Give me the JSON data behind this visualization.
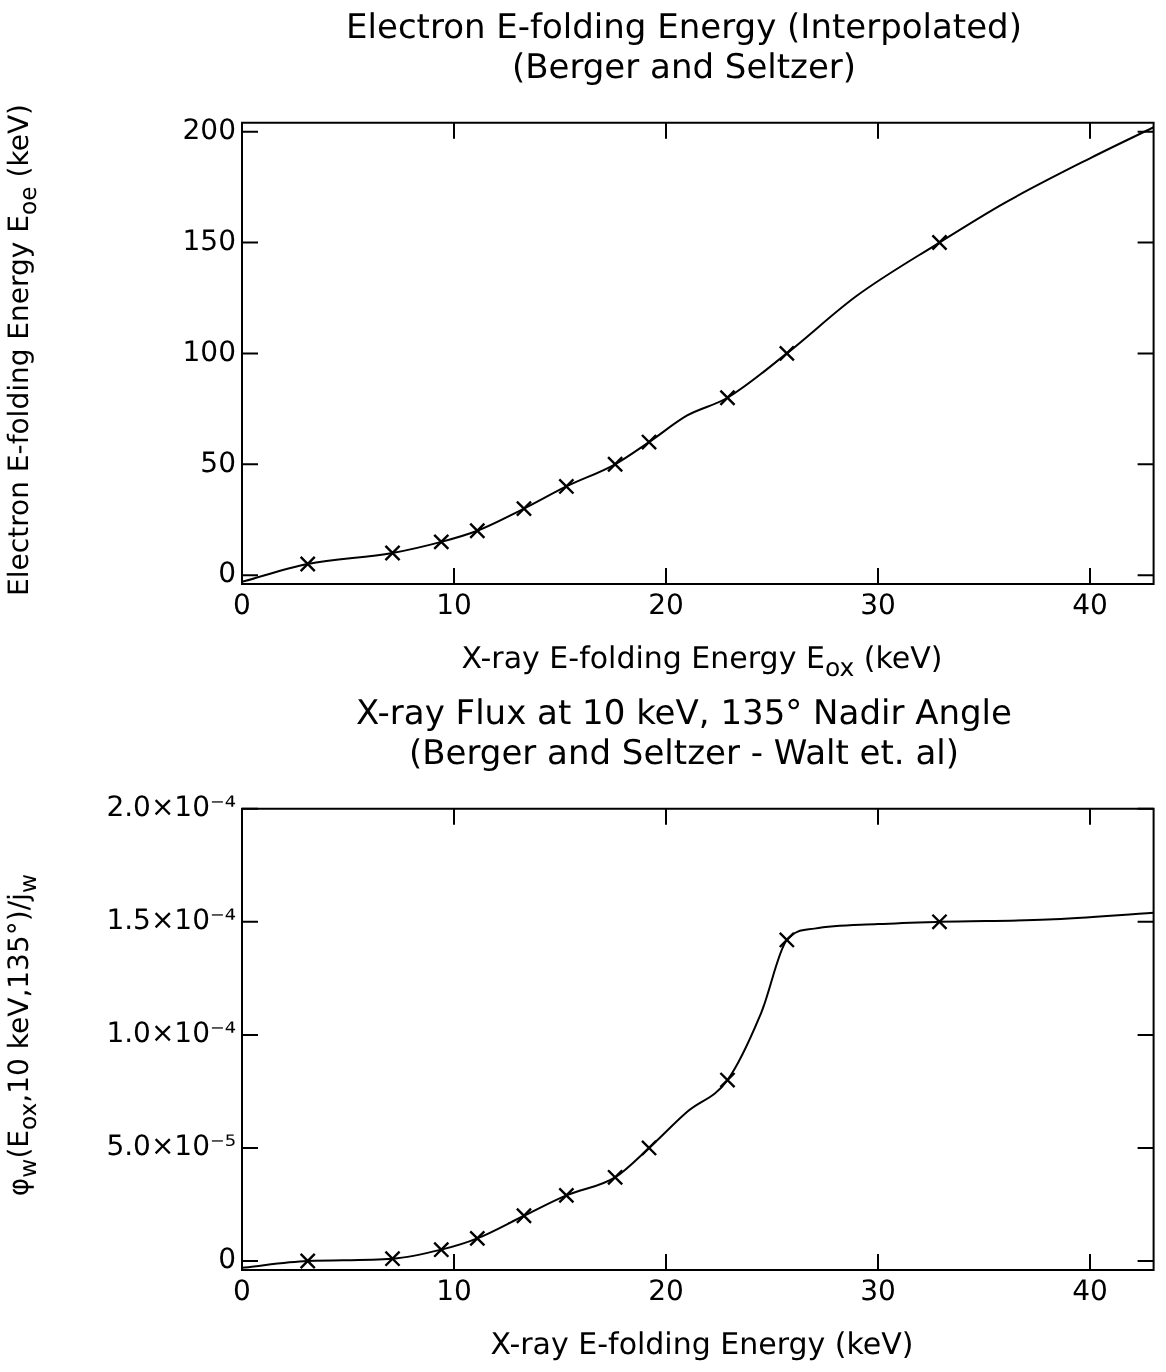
{
  "chart_data": [
    {
      "type": "line",
      "title": "Electron  E-folding Energy (Interpolated)",
      "subtitle": "(Berger and Seltzer)",
      "xlabel": "X-ray E-folding Energy E$_{ox}$ (keV)",
      "ylabel": "Electron E-folding Energy E$_{oe}$ (keV)",
      "xlim": [
        0,
        43
      ],
      "ylim": [
        -4,
        204
      ],
      "xticks": [
        0,
        10,
        20,
        30,
        40
      ],
      "yticks": [
        0,
        50,
        100,
        150,
        200
      ],
      "grid": false,
      "series": [
        {
          "type": "line",
          "color": "#000000",
          "marker": "none",
          "x": [
            0,
            3.1,
            7.1,
            9.4,
            11.1,
            13.3,
            15.3,
            17.6,
            19.2,
            21,
            22.9,
            25.7,
            29,
            32.9,
            36,
            40,
            43
          ],
          "values": [
            -3,
            5,
            10,
            15,
            20,
            30,
            40,
            50,
            60,
            72,
            80,
            100,
            126,
            150,
            168,
            188,
            202
          ]
        },
        {
          "type": "scatter",
          "color": "#000000",
          "marker": "cross",
          "x": [
            3.1,
            7.1,
            9.4,
            11.1,
            13.3,
            15.3,
            17.6,
            19.2,
            22.9,
            25.7,
            32.9
          ],
          "values": [
            5,
            10,
            15,
            20,
            30,
            40,
            50,
            60,
            80,
            100,
            150
          ]
        }
      ]
    },
    {
      "type": "line",
      "title": "X-ray Flux at 10 keV, 135° Nadir Angle",
      "subtitle": "(Berger and Seltzer - Walt et. al)",
      "xlabel": "X-ray E-folding Energy (keV)",
      "ylabel": "φ$_{w}$(E$_{ox}$,10 keV,135°)/j$_{w}$",
      "xlim": [
        0,
        43
      ],
      "ylim": [
        -4e-06,
        0.0002
      ],
      "xticks": [
        0,
        10,
        20,
        30,
        40
      ],
      "yticks": [
        0,
        {
          "value": 5e-05,
          "label": "5.0×10⁻⁵"
        },
        {
          "value": 0.0001,
          "label": "1.0×10⁻⁴"
        },
        {
          "value": 0.00015,
          "label": "1.5×10⁻⁴"
        },
        {
          "value": 0.0002,
          "label": "2.0×10⁻⁴"
        }
      ],
      "grid": false,
      "series": [
        {
          "type": "line",
          "color": "#000000",
          "marker": "none",
          "x": [
            0,
            3.1,
            7.1,
            9.4,
            11.1,
            13.3,
            15.3,
            17.6,
            19.2,
            21,
            22.9,
            24.5,
            25.7,
            27,
            30,
            32.9,
            38,
            43
          ],
          "values": [
            -3e-06,
            0,
            1e-06,
            5e-06,
            1e-05,
            2e-05,
            2.9e-05,
            3.7e-05,
            5e-05,
            6.6e-05,
            8e-05,
            0.00011,
            0.000142,
            0.000147,
            0.000149,
            0.00015,
            0.000151,
            0.000154
          ]
        },
        {
          "type": "scatter",
          "color": "#000000",
          "marker": "cross",
          "x": [
            3.1,
            7.1,
            9.4,
            11.1,
            13.3,
            15.3,
            17.6,
            19.2,
            22.9,
            25.7,
            32.9
          ],
          "values": [
            0,
            1e-06,
            5e-06,
            1e-05,
            2e-05,
            2.9e-05,
            3.7e-05,
            5e-05,
            8e-05,
            0.000142,
            0.00015
          ]
        }
      ]
    }
  ]
}
